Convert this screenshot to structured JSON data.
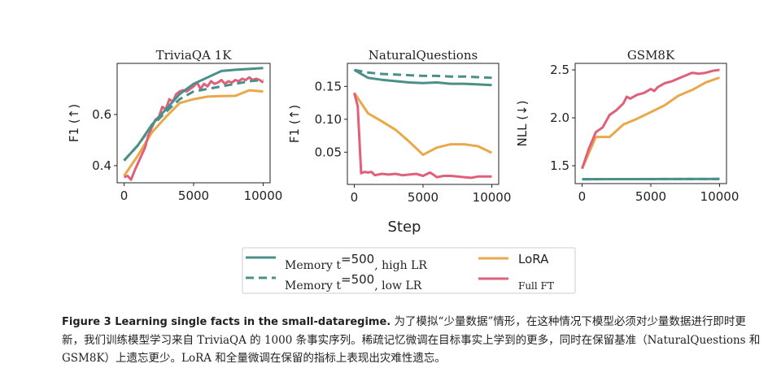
{
  "colors": {
    "memory": "#4a9088",
    "lora": "#e9a84a",
    "fullft": "#e0607a"
  },
  "shared_xlabel": "Step",
  "legend": {
    "items": [
      {
        "label": "Memory t",
        "sup": "=500",
        "suffix": ",  high LR",
        "style": "solid",
        "color": "#4a9088"
      },
      {
        "label": "Memory t",
        "sup": "=500",
        "suffix": ",  low LR",
        "style": "dashed",
        "color": "#4a9088"
      },
      {
        "label": "LoRA",
        "style": "solid",
        "color": "#e9a84a"
      },
      {
        "label": "Full FT",
        "style": "solid",
        "color": "#e0607a"
      }
    ]
  },
  "caption": {
    "bold": "Figure 3 Learning single facts in the small-dataregime.",
    "text": " 为了模拟“少量数据”情形，在这种情况下模型必须对少量数据进行即时更新，我们训练模型学习来自 TriviaQA 的 1000 条事实序列。稀疏记忆微调在目标事实上学到的更多，同时在保留基准（NaturalQuestions 和 GSM8K）上遗忘更少。LoRA 和全量微调在保留的指标上表现出灾难性遗忘。"
  },
  "chart_data": [
    {
      "type": "line",
      "title": "TriviaQA 1K",
      "ylabel": "F1 (↑)",
      "xlim": [
        -500,
        10500
      ],
      "ylim": [
        0.333,
        0.8
      ],
      "xticks": [
        0,
        5000,
        10000
      ],
      "xtick_labels": [
        "0",
        "5000",
        "10000"
      ],
      "yticks": [
        0.4,
        0.6
      ],
      "ytick_labels": [
        "0.4",
        "0.6"
      ],
      "series": [
        {
          "name": "Memory t=500, high LR",
          "style": "solid",
          "x": [
            0,
            1000,
            2000,
            3000,
            4000,
            5000,
            6000,
            7000,
            8000,
            9000,
            10000
          ],
          "y": [
            0.42,
            0.48,
            0.56,
            0.62,
            0.68,
            0.72,
            0.745,
            0.77,
            0.775,
            0.778,
            0.782
          ]
        },
        {
          "name": "Memory t=500, low LR",
          "style": "dashed",
          "x": [
            0,
            1000,
            2000,
            3000,
            4000,
            5000,
            6000,
            7000,
            8000,
            9000,
            10000
          ],
          "y": [
            0.42,
            0.48,
            0.555,
            0.61,
            0.66,
            0.69,
            0.7,
            0.71,
            0.72,
            0.73,
            0.735
          ]
        },
        {
          "name": "LoRA",
          "style": "solid",
          "x": [
            0,
            1000,
            2000,
            3000,
            4000,
            5000,
            6000,
            7000,
            8000,
            9000,
            10000
          ],
          "y": [
            0.36,
            0.44,
            0.53,
            0.59,
            0.645,
            0.66,
            0.67,
            0.672,
            0.673,
            0.695,
            0.69
          ]
        },
        {
          "name": "Full FT",
          "style": "solid",
          "x": [
            0,
            250,
            500,
            750,
            1000,
            1250,
            1500,
            1750,
            2000,
            2250,
            2500,
            2750,
            3000,
            3250,
            3500,
            3750,
            4000,
            4250,
            4500,
            4750,
            5000,
            5250,
            5500,
            5750,
            6000,
            6250,
            6500,
            6750,
            7000,
            7250,
            7500,
            7750,
            8000,
            8250,
            8500,
            8750,
            9000,
            9250,
            9500,
            9750,
            10000
          ],
          "y": [
            0.355,
            0.36,
            0.345,
            0.38,
            0.41,
            0.44,
            0.47,
            0.52,
            0.55,
            0.58,
            0.59,
            0.63,
            0.62,
            0.66,
            0.65,
            0.68,
            0.69,
            0.695,
            0.69,
            0.7,
            0.71,
            0.725,
            0.7,
            0.72,
            0.71,
            0.73,
            0.72,
            0.725,
            0.735,
            0.72,
            0.73,
            0.725,
            0.735,
            0.73,
            0.74,
            0.735,
            0.745,
            0.735,
            0.74,
            0.735,
            0.725
          ]
        }
      ]
    },
    {
      "type": "line",
      "title": "NaturalQuestions",
      "ylabel": "F1 (↑)",
      "xlim": [
        -500,
        10500
      ],
      "ylim": [
        0.001,
        0.185
      ],
      "xticks": [
        0,
        5000,
        10000
      ],
      "xtick_labels": [
        "0",
        "5000",
        "10000"
      ],
      "yticks": [
        0.05,
        0.1,
        0.15
      ],
      "ytick_labels": [
        "0.05",
        "0.10",
        "0.15"
      ],
      "series": [
        {
          "name": "Memory t=500, high LR",
          "style": "solid",
          "x": [
            0,
            1000,
            2000,
            3000,
            4000,
            5000,
            6000,
            7000,
            8000,
            9000,
            10000
          ],
          "y": [
            0.175,
            0.163,
            0.16,
            0.158,
            0.156,
            0.155,
            0.156,
            0.154,
            0.154,
            0.153,
            0.152
          ]
        },
        {
          "name": "Memory t=500, low LR",
          "style": "dashed",
          "x": [
            0,
            1000,
            2000,
            3000,
            4000,
            5000,
            6000,
            7000,
            8000,
            9000,
            10000
          ],
          "y": [
            0.175,
            0.171,
            0.169,
            0.168,
            0.167,
            0.166,
            0.166,
            0.165,
            0.165,
            0.164,
            0.163
          ]
        },
        {
          "name": "LoRA",
          "style": "solid",
          "x": [
            0,
            1000,
            2000,
            3000,
            4000,
            5000,
            6000,
            7000,
            8000,
            9000,
            10000
          ],
          "y": [
            0.14,
            0.109,
            0.097,
            0.084,
            0.066,
            0.046,
            0.057,
            0.062,
            0.062,
            0.059,
            0.049
          ]
        },
        {
          "name": "Full FT",
          "style": "solid",
          "x": [
            0,
            250,
            500,
            750,
            1000,
            1250,
            1500,
            1750,
            2000,
            2500,
            3000,
            3500,
            4000,
            4500,
            5000,
            5500,
            5750,
            6000,
            6500,
            7000,
            7500,
            8000,
            8500,
            9000,
            9500,
            10000
          ],
          "y": [
            0.14,
            0.12,
            0.018,
            0.02,
            0.019,
            0.02,
            0.015,
            0.016,
            0.017,
            0.016,
            0.017,
            0.015,
            0.016,
            0.017,
            0.014,
            0.019,
            0.016,
            0.012,
            0.014,
            0.014,
            0.013,
            0.012,
            0.011,
            0.013,
            0.013,
            0.013
          ]
        }
      ]
    },
    {
      "type": "line",
      "title": "GSM8K",
      "ylabel": "NLL (↓)",
      "xlim": [
        -500,
        10500
      ],
      "ylim": [
        1.314,
        2.568
      ],
      "xticks": [
        0,
        5000,
        10000
      ],
      "xtick_labels": [
        "0",
        "5000",
        "10000"
      ],
      "yticks": [
        1.5,
        2.0,
        2.5
      ],
      "ytick_labels": [
        "1.5",
        "2.0",
        "2.5"
      ],
      "series": [
        {
          "name": "Memory t=500, high LR",
          "style": "solid",
          "x": [
            0,
            10000
          ],
          "y": [
            1.36,
            1.362
          ]
        },
        {
          "name": "Memory t=500, low LR",
          "style": "dashed",
          "x": [
            0,
            10000
          ],
          "y": [
            1.36,
            1.362
          ]
        },
        {
          "name": "LoRA",
          "style": "solid",
          "x": [
            0,
            1000,
            2000,
            3000,
            4000,
            5000,
            6000,
            7000,
            8000,
            9000,
            10000
          ],
          "y": [
            1.47,
            1.8,
            1.8,
            1.93,
            1.99,
            2.06,
            2.13,
            2.23,
            2.29,
            2.37,
            2.42
          ]
        },
        {
          "name": "Full FT",
          "style": "solid",
          "x": [
            0,
            500,
            1000,
            1500,
            2000,
            2500,
            3000,
            3250,
            3500,
            4000,
            4500,
            5000,
            5250,
            5500,
            6000,
            6500,
            7000,
            7500,
            8000,
            8500,
            9000,
            9500,
            10000
          ],
          "y": [
            1.47,
            1.68,
            1.85,
            1.9,
            2.03,
            2.08,
            2.15,
            2.22,
            2.2,
            2.24,
            2.26,
            2.3,
            2.28,
            2.32,
            2.36,
            2.38,
            2.41,
            2.44,
            2.47,
            2.46,
            2.47,
            2.49,
            2.5
          ]
        }
      ]
    }
  ]
}
